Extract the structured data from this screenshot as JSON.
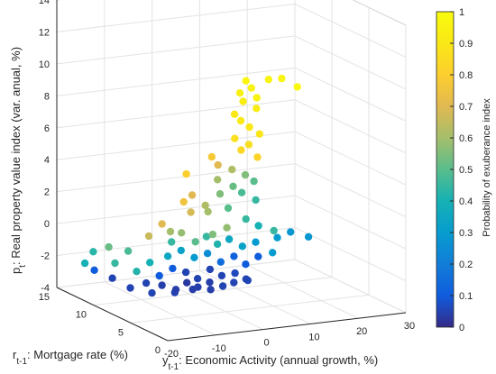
{
  "chart_data": {
    "type": "scatter",
    "zlabel": "p_t: Real property value index (var. anual, %)",
    "zlabel_main": "p",
    "zlabel_sub": "t",
    "zlabel_rest": ": Real property value index (var. anual, %)",
    "xlabel_main": "y",
    "xlabel_sub": "t-1",
    "xlabel_rest": ": Economic Activity (annual growth, %)",
    "ylabel_main": "r",
    "ylabel_sub": "t-1",
    "ylabel_rest": ": Mortgage rate (%)",
    "colorbar_label": "Probability of exuberance index",
    "xlim": [
      -20,
      30
    ],
    "ylim": [
      0,
      15
    ],
    "zlim": [
      -4,
      14
    ],
    "clim": [
      0,
      1
    ],
    "x_ticks": [
      "-20",
      "-10",
      "0",
      "10",
      "20",
      "30"
    ],
    "y_ticks": [
      "0",
      "5",
      "10",
      "15"
    ],
    "z_ticks": [
      "-4",
      "-2",
      "0",
      "2",
      "4",
      "6",
      "8",
      "10",
      "12",
      "14"
    ],
    "colorbar_ticks": [
      "0",
      "0.1",
      "0.2",
      "0.3",
      "0.4",
      "0.5",
      "0.6",
      "0.7",
      "0.8",
      "0.9",
      "1"
    ],
    "colormap": "parula",
    "grid": true,
    "points": [
      [
        0.3,
        2.5,
        11.0,
        0.97
      ],
      [
        1.0,
        2.2,
        10.6,
        0.95
      ],
      [
        -0.5,
        2.8,
        10.2,
        0.94
      ],
      [
        1.8,
        2.0,
        10.0,
        0.96
      ],
      [
        0.5,
        3.0,
        9.6,
        0.93
      ],
      [
        3.5,
        1.5,
        11.2,
        0.96
      ],
      [
        5.5,
        1.0,
        11.3,
        0.97
      ],
      [
        8.0,
        0.5,
        10.8,
        0.98
      ],
      [
        2.5,
        2.5,
        9.2,
        0.92
      ],
      [
        -1.0,
        3.2,
        8.8,
        0.9
      ],
      [
        0.0,
        3.0,
        8.4,
        0.91
      ],
      [
        1.5,
        2.8,
        8.0,
        0.9
      ],
      [
        3.0,
        2.4,
        7.6,
        0.89
      ],
      [
        -0.5,
        3.5,
        7.2,
        0.87
      ],
      [
        2.0,
        3.2,
        6.8,
        0.86
      ],
      [
        1.0,
        3.6,
        6.4,
        0.84
      ],
      [
        3.5,
        3.0,
        6.0,
        0.82
      ],
      [
        -3.0,
        5.0,
        5.8,
        0.78
      ],
      [
        -6.0,
        6.5,
        4.5,
        0.8
      ],
      [
        -2.0,
        4.8,
        5.3,
        0.7
      ],
      [
        0.5,
        4.5,
        5.0,
        0.62
      ],
      [
        2.5,
        4.0,
        4.7,
        0.55
      ],
      [
        4.0,
        3.8,
        4.3,
        0.5
      ],
      [
        -1.0,
        5.5,
        4.2,
        0.6
      ],
      [
        1.5,
        5.0,
        3.8,
        0.52
      ],
      [
        3.0,
        4.8,
        3.4,
        0.48
      ],
      [
        5.0,
        4.2,
        3.0,
        0.45
      ],
      [
        0.0,
        5.8,
        3.2,
        0.55
      ],
      [
        -4.0,
        7.0,
        3.0,
        0.7
      ],
      [
        -5.0,
        7.5,
        2.5,
        0.75
      ],
      [
        -3.5,
        7.5,
        1.8,
        0.68
      ],
      [
        -2.0,
        6.5,
        2.4,
        0.62
      ],
      [
        -1.0,
        6.8,
        1.9,
        0.6
      ],
      [
        2.0,
        6.0,
        2.2,
        0.5
      ],
      [
        4.5,
        5.2,
        1.6,
        0.45
      ],
      [
        6.5,
        4.8,
        1.2,
        0.4
      ],
      [
        8.5,
        4.0,
        1.0,
        0.45
      ],
      [
        -8.0,
        8.5,
        1.0,
        0.7
      ],
      [
        -10.0,
        9.0,
        0.2,
        0.66
      ],
      [
        -7.0,
        8.0,
        0.6,
        0.6
      ],
      [
        -5.0,
        7.8,
        0.5,
        0.58
      ],
      [
        -3.0,
        7.2,
        0.0,
        0.5
      ],
      [
        -1.0,
        7.0,
        0.3,
        0.45
      ],
      [
        1.0,
        6.8,
        -0.2,
        0.42
      ],
      [
        3.0,
        6.5,
        0.1,
        0.35
      ],
      [
        5.0,
        6.0,
        -0.3,
        0.33
      ],
      [
        7.0,
        5.5,
        0.0,
        0.3
      ],
      [
        10.0,
        4.5,
        0.4,
        0.3
      ],
      [
        12.0,
        4.0,
        0.8,
        0.28
      ],
      [
        -12.0,
        10.5,
        -1.0,
        0.48
      ],
      [
        -14.0,
        11.0,
        -1.8,
        0.45
      ],
      [
        -15.0,
        11.2,
        -0.8,
        0.52
      ],
      [
        -11.0,
        10.0,
        -2.2,
        0.42
      ],
      [
        -9.0,
        9.5,
        -1.6,
        0.4
      ],
      [
        -6.0,
        9.0,
        -1.2,
        0.35
      ],
      [
        -4.0,
        8.5,
        -0.8,
        0.33
      ],
      [
        -2.0,
        8.0,
        -1.2,
        0.3
      ],
      [
        0.0,
        7.5,
        -0.9,
        0.25
      ],
      [
        2.0,
        7.0,
        -1.4,
        0.15
      ],
      [
        4.0,
        6.5,
        -1.0,
        0.12
      ],
      [
        6.0,
        6.2,
        -1.5,
        0.1
      ],
      [
        8.0,
        5.8,
        -1.0,
        0.1
      ],
      [
        -7.0,
        9.5,
        -2.5,
        0.1
      ],
      [
        -5.0,
        9.0,
        -2.0,
        0.1
      ],
      [
        -3.0,
        8.5,
        -2.2,
        0.05
      ],
      [
        -1.0,
        8.2,
        -2.6,
        0.05
      ],
      [
        1.0,
        7.8,
        -2.0,
        0.05
      ],
      [
        3.0,
        7.5,
        -2.4,
        0.05
      ],
      [
        5.0,
        7.0,
        -2.2,
        0.06
      ],
      [
        7.0,
        6.8,
        -2.6,
        0.05
      ],
      [
        -9.0,
        10.0,
        -3.0,
        0.05
      ],
      [
        -6.0,
        9.8,
        -3.2,
        0.04
      ],
      [
        -4.0,
        9.2,
        -3.4,
        0.04
      ],
      [
        -2.0,
        9.0,
        -3.0,
        0.03
      ],
      [
        0.0,
        8.8,
        -3.3,
        0.04
      ],
      [
        2.0,
        8.5,
        -3.0,
        0.04
      ],
      [
        4.0,
        8.0,
        -3.2,
        0.05
      ],
      [
        6.0,
        7.8,
        -3.0,
        0.05
      ],
      [
        8.0,
        7.2,
        -2.8,
        0.06
      ],
      [
        -10.0,
        11.5,
        -3.6,
        0.05
      ],
      [
        -7.0,
        10.5,
        -3.8,
        0.05
      ],
      [
        -3.0,
        10.0,
        -3.8,
        0.05
      ],
      [
        0.0,
        9.5,
        -3.6,
        0.04
      ],
      [
        3.0,
        9.0,
        -3.6,
        0.04
      ],
      [
        -13.0,
        12.0,
        -3.0,
        0.05
      ],
      [
        -16.0,
        12.5,
        -2.5,
        0.1
      ],
      [
        -18.0,
        12.5,
        -2.0,
        0.4
      ],
      [
        -17.0,
        12.0,
        -1.2,
        0.43
      ],
      [
        9.0,
        4.5,
        -0.5,
        0.3
      ],
      [
        15.0,
        3.5,
        0.5,
        0.28
      ],
      [
        -2.0,
        5.5,
        0.8,
        0.55
      ],
      [
        0.5,
        5.2,
        1.2,
        0.58
      ],
      [
        -6.0,
        8.5,
        -0.2,
        0.45
      ]
    ]
  }
}
